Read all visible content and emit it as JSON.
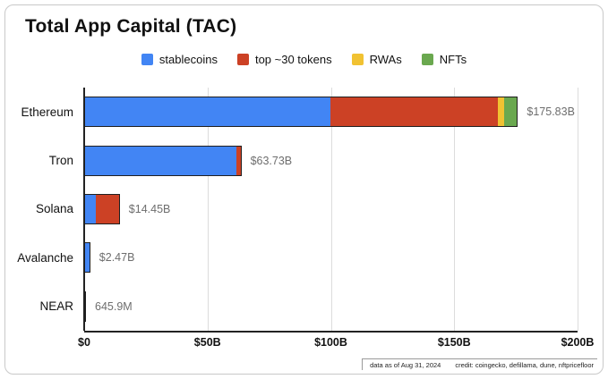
{
  "chart_data": {
    "type": "bar",
    "orientation": "horizontal",
    "title": "Total App Capital (TAC)",
    "categories": [
      "Ethereum",
      "Tron",
      "Solana",
      "Avalanche",
      "NEAR"
    ],
    "series": [
      {
        "name": "stablecoins",
        "color": "#4285F4",
        "values": [
          100.0,
          62.0,
          4.5,
          2.47,
          0.6459
        ]
      },
      {
        "name": "top ~30 tokens",
        "color": "#CC4125",
        "values": [
          68.0,
          1.73,
          9.95,
          0,
          0
        ]
      },
      {
        "name": "RWAs",
        "color": "#F1C232",
        "values": [
          2.5,
          0,
          0,
          0,
          0
        ]
      },
      {
        "name": "NFTs",
        "color": "#6AA84F",
        "values": [
          5.33,
          0,
          0,
          0,
          0
        ]
      }
    ],
    "totals_labels": [
      "$175.83B",
      "$63.73B",
      "$14.45B",
      "$2.47B",
      "645.9M"
    ],
    "x_ticks": [
      "$0",
      "$50B",
      "$100B",
      "$150B",
      "$200B"
    ],
    "xlim": [
      0,
      200
    ],
    "grid": true,
    "legend_position": "top",
    "unit": "billions USD"
  },
  "footer": {
    "data_as_of": "data as of Aug 31, 2024",
    "credit": "credit: coingecko, defillama, dune, nftpricefloor"
  }
}
